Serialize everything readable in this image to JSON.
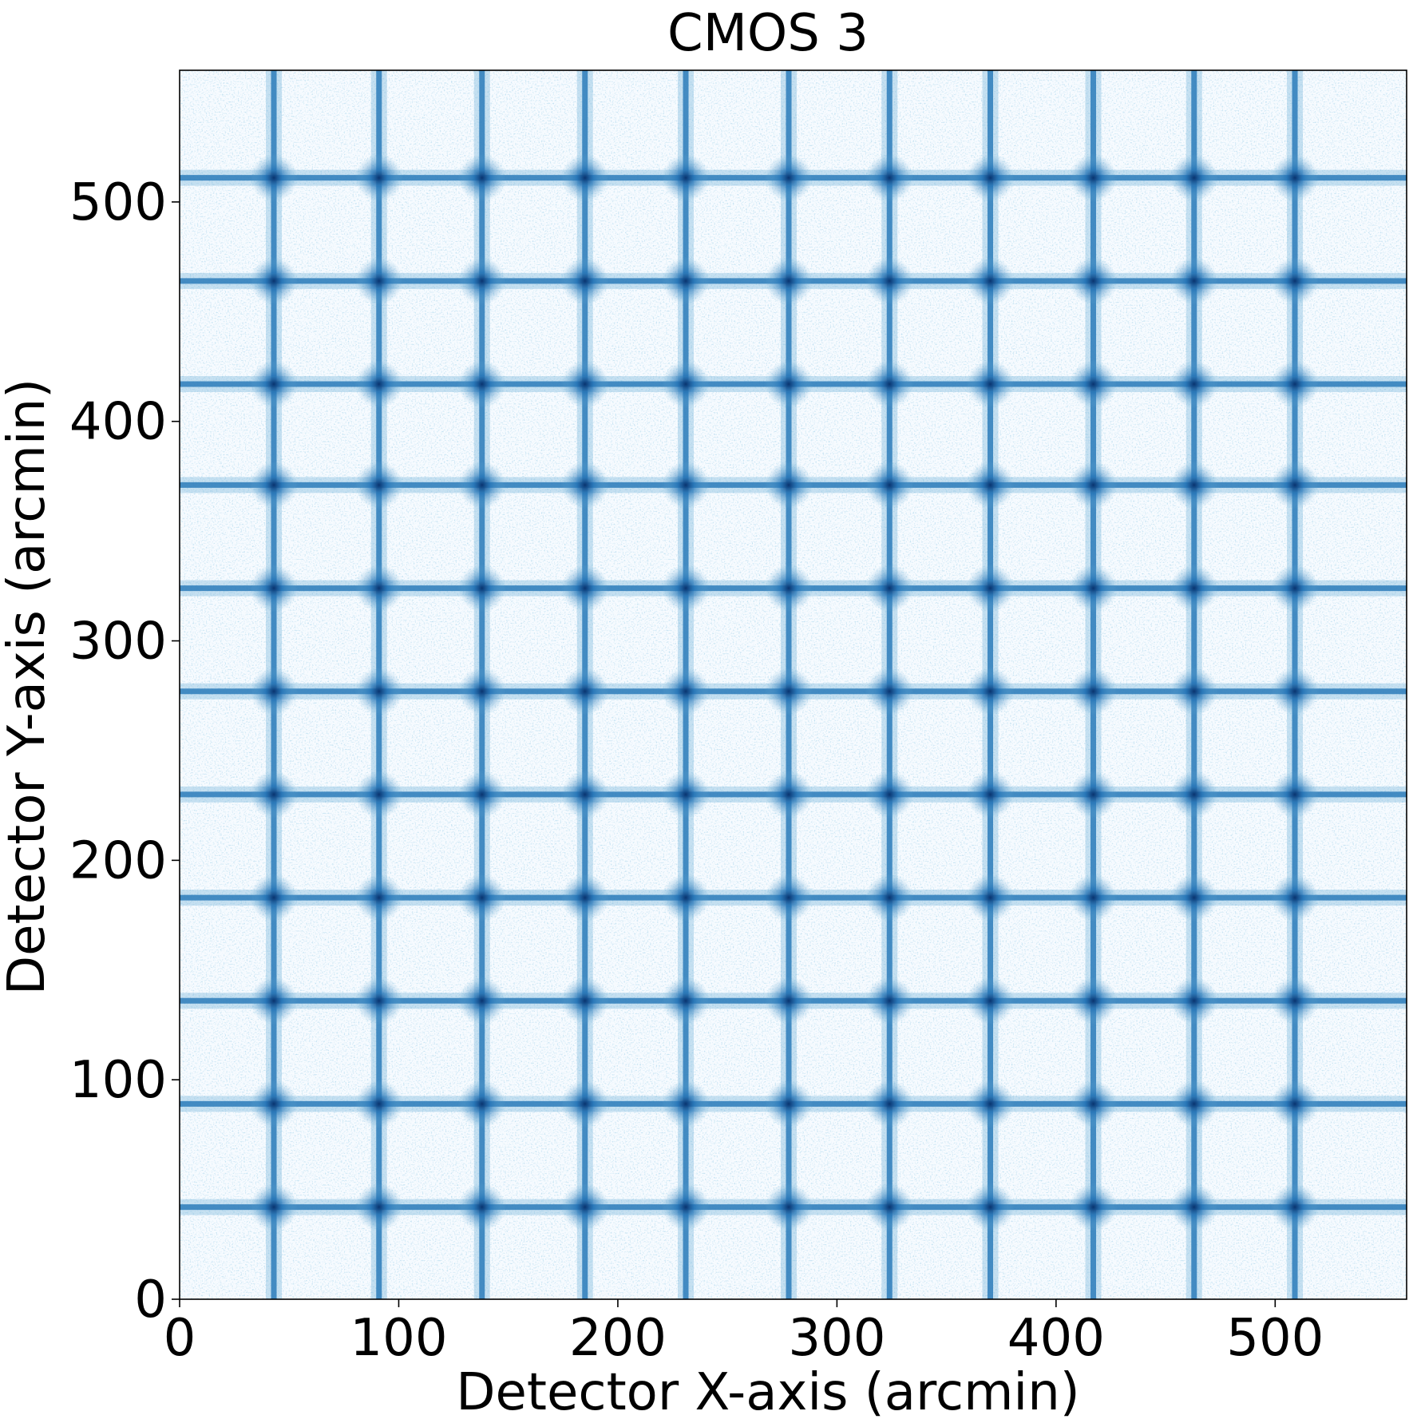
{
  "chart_data": {
    "type": "heatmap",
    "title": "CMOS 3",
    "xlabel": "Detector X-axis (arcmin)",
    "ylabel": "Detector Y-axis (arcmin)",
    "xlim": [
      0,
      560
    ],
    "ylim": [
      0,
      560
    ],
    "xticks": [
      0,
      100,
      200,
      300,
      400,
      500
    ],
    "yticks": [
      0,
      100,
      200,
      300,
      400,
      500
    ],
    "xtick_labels": [
      "0",
      "100",
      "200",
      "300",
      "400",
      "500"
    ],
    "ytick_labels": [
      "0",
      "100",
      "200",
      "300",
      "400",
      "500"
    ],
    "grid": false,
    "colormap": "Blues",
    "colors": {
      "low": "#f7fbff",
      "mid": "#6baed6",
      "high": "#08306b",
      "frame": "#000000"
    },
    "grid_pattern": {
      "vertical_line_x": [
        43,
        91,
        138,
        185,
        231,
        278,
        324,
        370,
        417,
        463,
        509
      ],
      "horizontal_line_y": [
        42,
        89,
        136,
        183,
        230,
        277,
        324,
        371,
        417,
        464,
        511
      ]
    }
  }
}
